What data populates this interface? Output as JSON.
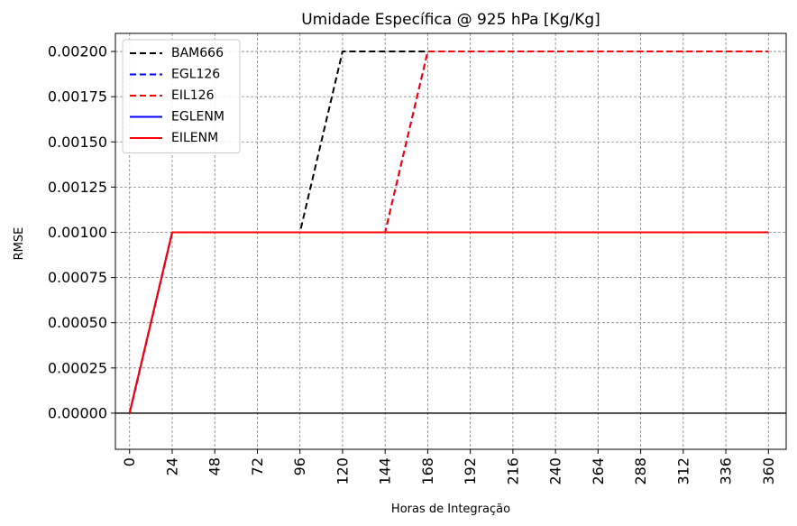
{
  "chart_data": {
    "type": "line",
    "title": "Umidade Específica @ 925 hPa [Kg/Kg]",
    "xlabel": "Horas de Integração",
    "ylabel": "RMSE",
    "xlim": [
      -8,
      370
    ],
    "ylim": [
      -0.0002,
      0.0021
    ],
    "xticks": [
      0,
      24,
      48,
      72,
      96,
      120,
      144,
      168,
      192,
      216,
      240,
      264,
      288,
      312,
      336,
      360
    ],
    "xtick_labels": [
      "0",
      "24",
      "48",
      "72",
      "96",
      "120",
      "144",
      "168",
      "192",
      "216",
      "240",
      "264",
      "288",
      "312",
      "336",
      "360"
    ],
    "yticks": [
      0,
      0.00025,
      0.0005,
      0.00075,
      0.001,
      0.00125,
      0.0015,
      0.00175,
      0.002
    ],
    "ytick_labels": [
      "0.00000",
      "0.00025",
      "0.00050",
      "0.00075",
      "0.00100",
      "0.00125",
      "0.00150",
      "0.00175",
      "0.00200"
    ],
    "grid": true,
    "legend_position": "top-left",
    "x": [
      0,
      24,
      48,
      72,
      96,
      120,
      144,
      168,
      192,
      216,
      240,
      264,
      288,
      312,
      336,
      360
    ],
    "series": [
      {
        "name": "BAM666",
        "color": "#000000",
        "dashed": true,
        "values": [
          0,
          0.001,
          0.001,
          0.001,
          0.001,
          0.002,
          0.002,
          0.002,
          0.002,
          0.002,
          0.002,
          0.002,
          0.002,
          0.002,
          0.002,
          0.002
        ]
      },
      {
        "name": "EGL126",
        "color": "#0000ff",
        "dashed": true,
        "values": [
          0,
          0.001,
          0.001,
          0.001,
          0.001,
          0.001,
          0.001,
          0.002,
          0.002,
          0.002,
          0.002,
          0.002,
          0.002,
          0.002,
          0.002,
          0.002
        ]
      },
      {
        "name": "EIL126",
        "color": "#ff0000",
        "dashed": true,
        "values": [
          0,
          0.001,
          0.001,
          0.001,
          0.001,
          0.001,
          0.001,
          0.002,
          0.002,
          0.002,
          0.002,
          0.002,
          0.002,
          0.002,
          0.002,
          0.002
        ]
      },
      {
        "name": "EGLENM",
        "color": "#0000ff",
        "dashed": false,
        "values": [
          0,
          0.001,
          0.001,
          0.001,
          0.001,
          0.001,
          0.001,
          0.001,
          0.001,
          0.001,
          0.001,
          0.001,
          0.001,
          0.001,
          0.001,
          0.001
        ]
      },
      {
        "name": "EILENM",
        "color": "#ff0000",
        "dashed": false,
        "values": [
          0,
          0.001,
          0.001,
          0.001,
          0.001,
          0.001,
          0.001,
          0.001,
          0.001,
          0.001,
          0.001,
          0.001,
          0.001,
          0.001,
          0.001,
          0.001
        ]
      }
    ]
  }
}
